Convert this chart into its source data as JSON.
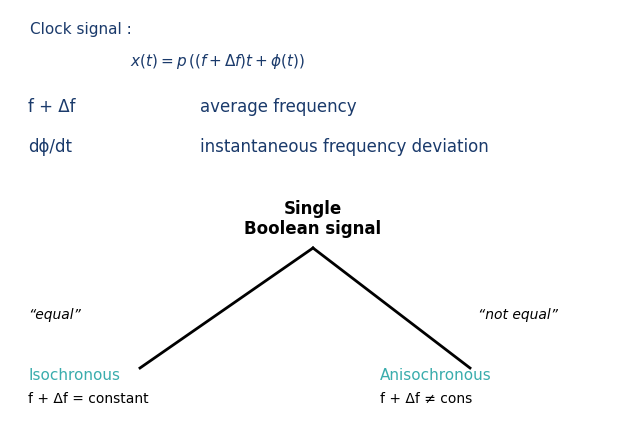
{
  "background_color": "#ffffff",
  "blue_color": "#1a3a6b",
  "teal_color": "#3aadad",
  "black_color": "#000000",
  "gray_color": "#555555",
  "clock_label": "Clock signal :",
  "equation": "$x(t) = p\\,((f + \\Delta f)t + \\phi(t))$",
  "line1_left": "f + Δf",
  "line1_right": "average frequency",
  "line2_left": "dϕ/dt",
  "line2_right": "instantaneous frequency deviation",
  "center_label_line1": "Single",
  "center_label_line2": "Boolean signal",
  "left_italic": "“equal”",
  "right_italic": "“not equal”",
  "left_teal_label": "Isochronous",
  "left_black_label": "f + Δf = constant",
  "right_teal_label": "Anisochronous",
  "right_black_label": "f + Δf ≠ cons",
  "fig_width": 6.26,
  "fig_height": 4.28,
  "dpi": 100
}
